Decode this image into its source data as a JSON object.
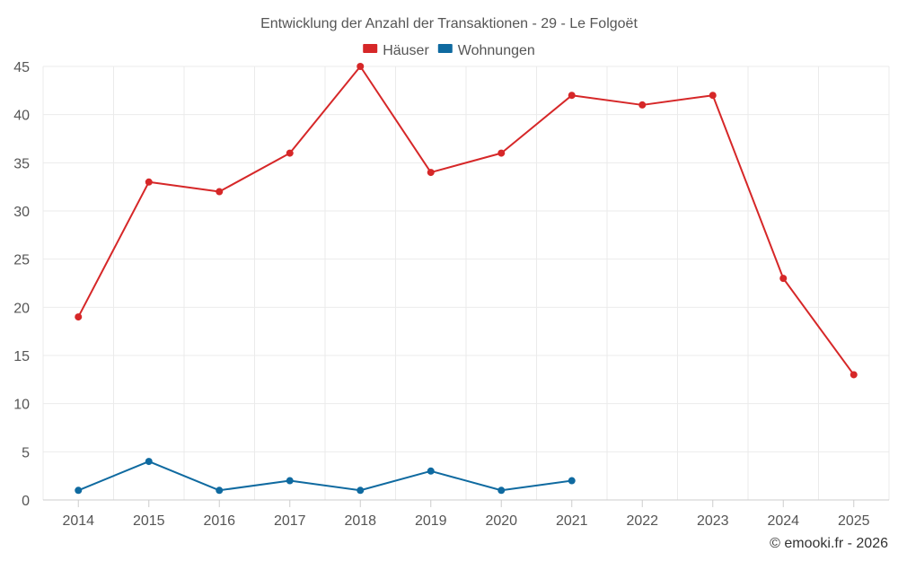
{
  "chart_data": {
    "type": "line",
    "title": "Entwicklung der Anzahl der Transaktionen - 29 - Le Folgoët",
    "xlabel": "",
    "ylabel": "",
    "categories": [
      "2014",
      "2015",
      "2016",
      "2017",
      "2018",
      "2019",
      "2020",
      "2021",
      "2022",
      "2023",
      "2024",
      "2025"
    ],
    "ylim": [
      0,
      45
    ],
    "yticks": [
      0,
      5,
      10,
      15,
      20,
      25,
      30,
      35,
      40,
      45
    ],
    "grid": true,
    "legend_position": "top-center",
    "series": [
      {
        "name": "Häuser",
        "color": "#d62728",
        "values": [
          19,
          33,
          32,
          36,
          45,
          34,
          36,
          42,
          41,
          42,
          23,
          13
        ]
      },
      {
        "name": "Wohnungen",
        "color": "#0f6aa0",
        "values": [
          1,
          4,
          1,
          2,
          1,
          3,
          1,
          2,
          null,
          null,
          null,
          null
        ]
      }
    ],
    "credit": "© emooki.fr - 2026"
  }
}
